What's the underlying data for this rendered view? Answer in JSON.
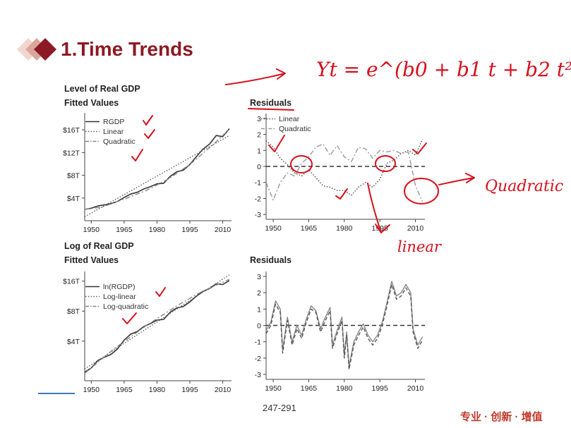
{
  "slide": {
    "title": "1.Time Trends",
    "page_number": "247-291",
    "brand_tagline": "专业 · 创新 · 增值",
    "accent_color": "#8b1a24",
    "annotations": {
      "equation": "Yt = e^(b0 + b1 t + b2 t²)",
      "quadratic_label": "Quadratic",
      "linear_label": "linear"
    }
  },
  "chart_data": [
    {
      "type": "line",
      "title": "Level of Real GDP",
      "subtitle": "Fitted Values",
      "x_ticks": [
        1950,
        1965,
        1980,
        1995,
        2010
      ],
      "xlim": [
        1947,
        2014
      ],
      "y_ticks": [
        "$4T",
        "$8T",
        "$12T",
        "$16T"
      ],
      "y_tick_values": [
        4,
        8,
        12,
        16
      ],
      "ylim": [
        0,
        19
      ],
      "legend_position": "top-left",
      "series": [
        {
          "name": "RGDP",
          "style": "solid",
          "color": "#333333",
          "x": [
            1947,
            1950,
            1953,
            1956,
            1959,
            1962,
            1965,
            1968,
            1971,
            1974,
            1977,
            1980,
            1983,
            1986,
            1989,
            1992,
            1995,
            1998,
            2001,
            2004,
            2007,
            2010,
            2013
          ],
          "y": [
            2.0,
            2.2,
            2.6,
            2.8,
            3.0,
            3.4,
            4.1,
            4.7,
            5.0,
            5.6,
            6.0,
            6.5,
            6.6,
            7.8,
            8.6,
            8.9,
            9.9,
            11.3,
            12.6,
            13.5,
            15.0,
            14.8,
            16.2
          ]
        },
        {
          "name": "Linear",
          "style": "dotted",
          "color": "#555555",
          "x": [
            1947,
            2013
          ],
          "y": [
            0.7,
            15.0
          ]
        },
        {
          "name": "Quadratic",
          "style": "dashdot",
          "color": "#888888",
          "x": [
            1947,
            1955,
            1965,
            1975,
            1985,
            1995,
            2005,
            2013
          ],
          "y": [
            2.0,
            2.4,
            3.8,
            5.3,
            7.3,
            9.9,
            13.2,
            16.1
          ]
        }
      ]
    },
    {
      "type": "line",
      "title": "Residuals",
      "x_ticks": [
        1950,
        1965,
        1980,
        1995,
        2010
      ],
      "xlim": [
        1947,
        2014
      ],
      "y_ticks": [
        -3,
        -2,
        -1,
        0,
        1,
        2,
        3
      ],
      "ylim": [
        -3.3,
        3.3
      ],
      "reference_line": 0,
      "legend_position": "top-left",
      "series": [
        {
          "name": "Linear",
          "style": "dotted",
          "color": "#444444",
          "x": [
            1947,
            1950,
            1953,
            1956,
            1959,
            1962,
            1965,
            1968,
            1971,
            1974,
            1977,
            1980,
            1983,
            1986,
            1989,
            1992,
            1995,
            1998,
            2001,
            2004,
            2007,
            2010,
            2013
          ],
          "y": [
            1.6,
            1.2,
            0.5,
            0.1,
            -0.4,
            -0.6,
            -0.2,
            -0.7,
            -1.2,
            -1.3,
            -1.5,
            -1.5,
            -1.8,
            -1.3,
            -1.0,
            -1.3,
            -0.8,
            0.2,
            0.4,
            0.8,
            1.0,
            0.7,
            1.7
          ]
        },
        {
          "name": "Quadratic",
          "style": "dashdot",
          "color": "#999999",
          "x": [
            1947,
            1950,
            1953,
            1956,
            1959,
            1962,
            1965,
            1968,
            1971,
            1974,
            1977,
            1980,
            1983,
            1986,
            1989,
            1992,
            1995,
            1998,
            2001,
            2004,
            2007,
            2010,
            2013
          ],
          "y": [
            -1.0,
            -2.1,
            -1.0,
            -0.4,
            -0.6,
            0.2,
            0.6,
            1.2,
            1.4,
            0.7,
            1.3,
            0.6,
            0.3,
            1.2,
            1.1,
            0.5,
            1.0,
            0.9,
            1.0,
            0.8,
            0.9,
            -1.2,
            -2.2
          ]
        }
      ]
    },
    {
      "type": "line",
      "title": "Log of Real GDP",
      "subtitle": "Fitted Values",
      "x_ticks": [
        1950,
        1965,
        1980,
        1995,
        2010
      ],
      "xlim": [
        1947,
        2014
      ],
      "y_ticks": [
        "$4T",
        "$8T",
        "$16T"
      ],
      "y_tick_values": [
        4,
        8,
        16
      ],
      "y_scale": "log",
      "ylim": [
        1.6,
        20
      ],
      "legend_position": "top-left",
      "series": [
        {
          "name": "ln(RGDP)",
          "style": "solid",
          "color": "#333333",
          "x": [
            1947,
            1950,
            1953,
            1956,
            1959,
            1962,
            1965,
            1968,
            1971,
            1974,
            1977,
            1980,
            1983,
            1986,
            1989,
            1992,
            1995,
            1998,
            2001,
            2004,
            2007,
            2010,
            2013
          ],
          "y": [
            1.95,
            2.15,
            2.55,
            2.75,
            2.95,
            3.35,
            4.1,
            4.7,
            5.0,
            5.6,
            6.0,
            6.5,
            6.6,
            7.8,
            8.6,
            8.9,
            9.9,
            11.3,
            12.6,
            13.5,
            15.0,
            14.8,
            16.2
          ]
        },
        {
          "name": "Log-linear",
          "style": "dotted",
          "color": "#555555",
          "x": [
            1947,
            2013
          ],
          "y": [
            2.1,
            18.5
          ]
        },
        {
          "name": "Log-quadratic",
          "style": "dashdot",
          "color": "#888888",
          "x": [
            1947,
            1960,
            1975,
            1990,
            2000,
            2013
          ],
          "y": [
            1.9,
            3.3,
            5.7,
            9.3,
            12.4,
            16.7
          ]
        }
      ]
    },
    {
      "type": "line",
      "title": "Residuals",
      "x_ticks": [
        1950,
        1965,
        1980,
        1995,
        2010
      ],
      "xlim": [
        1947,
        2014
      ],
      "y_ticks": [
        -3,
        -2,
        -1,
        0,
        1,
        2,
        3
      ],
      "ylim": [
        -3.3,
        3.3
      ],
      "reference_line": 0,
      "series": [
        {
          "name": "",
          "style": "solid",
          "color": "#888888",
          "x": [
            1947,
            1949,
            1951,
            1953,
            1954,
            1956,
            1958,
            1960,
            1962,
            1964,
            1966,
            1968,
            1970,
            1972,
            1974,
            1975,
            1977,
            1979,
            1980,
            1981,
            1982,
            1984,
            1986,
            1988,
            1990,
            1992,
            1994,
            1996,
            1998,
            2000,
            2002,
            2004,
            2006,
            2008,
            2009,
            2011,
            2013
          ],
          "y": [
            -0.3,
            0.2,
            1.5,
            1.0,
            -1.5,
            0.5,
            -1.0,
            0.0,
            -0.6,
            0.4,
            1.2,
            0.9,
            -0.2,
            0.5,
            1.1,
            -1.2,
            -0.3,
            0.5,
            -1.8,
            -0.4,
            -2.5,
            -1.0,
            -0.4,
            0.1,
            -0.6,
            -1.0,
            -0.6,
            0.2,
            1.4,
            2.7,
            1.8,
            2.0,
            2.5,
            2.0,
            -0.2,
            -1.2,
            -0.7
          ]
        },
        {
          "name": "",
          "style": "dashed",
          "color": "#555555",
          "x": [
            1947,
            1949,
            1951,
            1953,
            1954,
            1956,
            1958,
            1960,
            1962,
            1964,
            1966,
            1968,
            1970,
            1972,
            1974,
            1975,
            1977,
            1979,
            1980,
            1981,
            1982,
            1984,
            1986,
            1988,
            1990,
            1992,
            1994,
            1996,
            1998,
            2000,
            2002,
            2004,
            2006,
            2008,
            2009,
            2011,
            2013
          ],
          "y": [
            -0.5,
            0.0,
            1.3,
            0.8,
            -1.7,
            0.3,
            -1.2,
            -0.2,
            -0.8,
            0.2,
            1.0,
            0.8,
            -0.4,
            0.3,
            0.9,
            -1.4,
            -0.5,
            0.3,
            -2.0,
            -0.6,
            -2.7,
            -1.2,
            -0.6,
            -0.1,
            -0.8,
            -1.2,
            -0.8,
            0.0,
            1.2,
            2.5,
            1.6,
            1.8,
            2.3,
            1.8,
            -0.4,
            -1.4,
            -0.9
          ]
        }
      ]
    }
  ]
}
